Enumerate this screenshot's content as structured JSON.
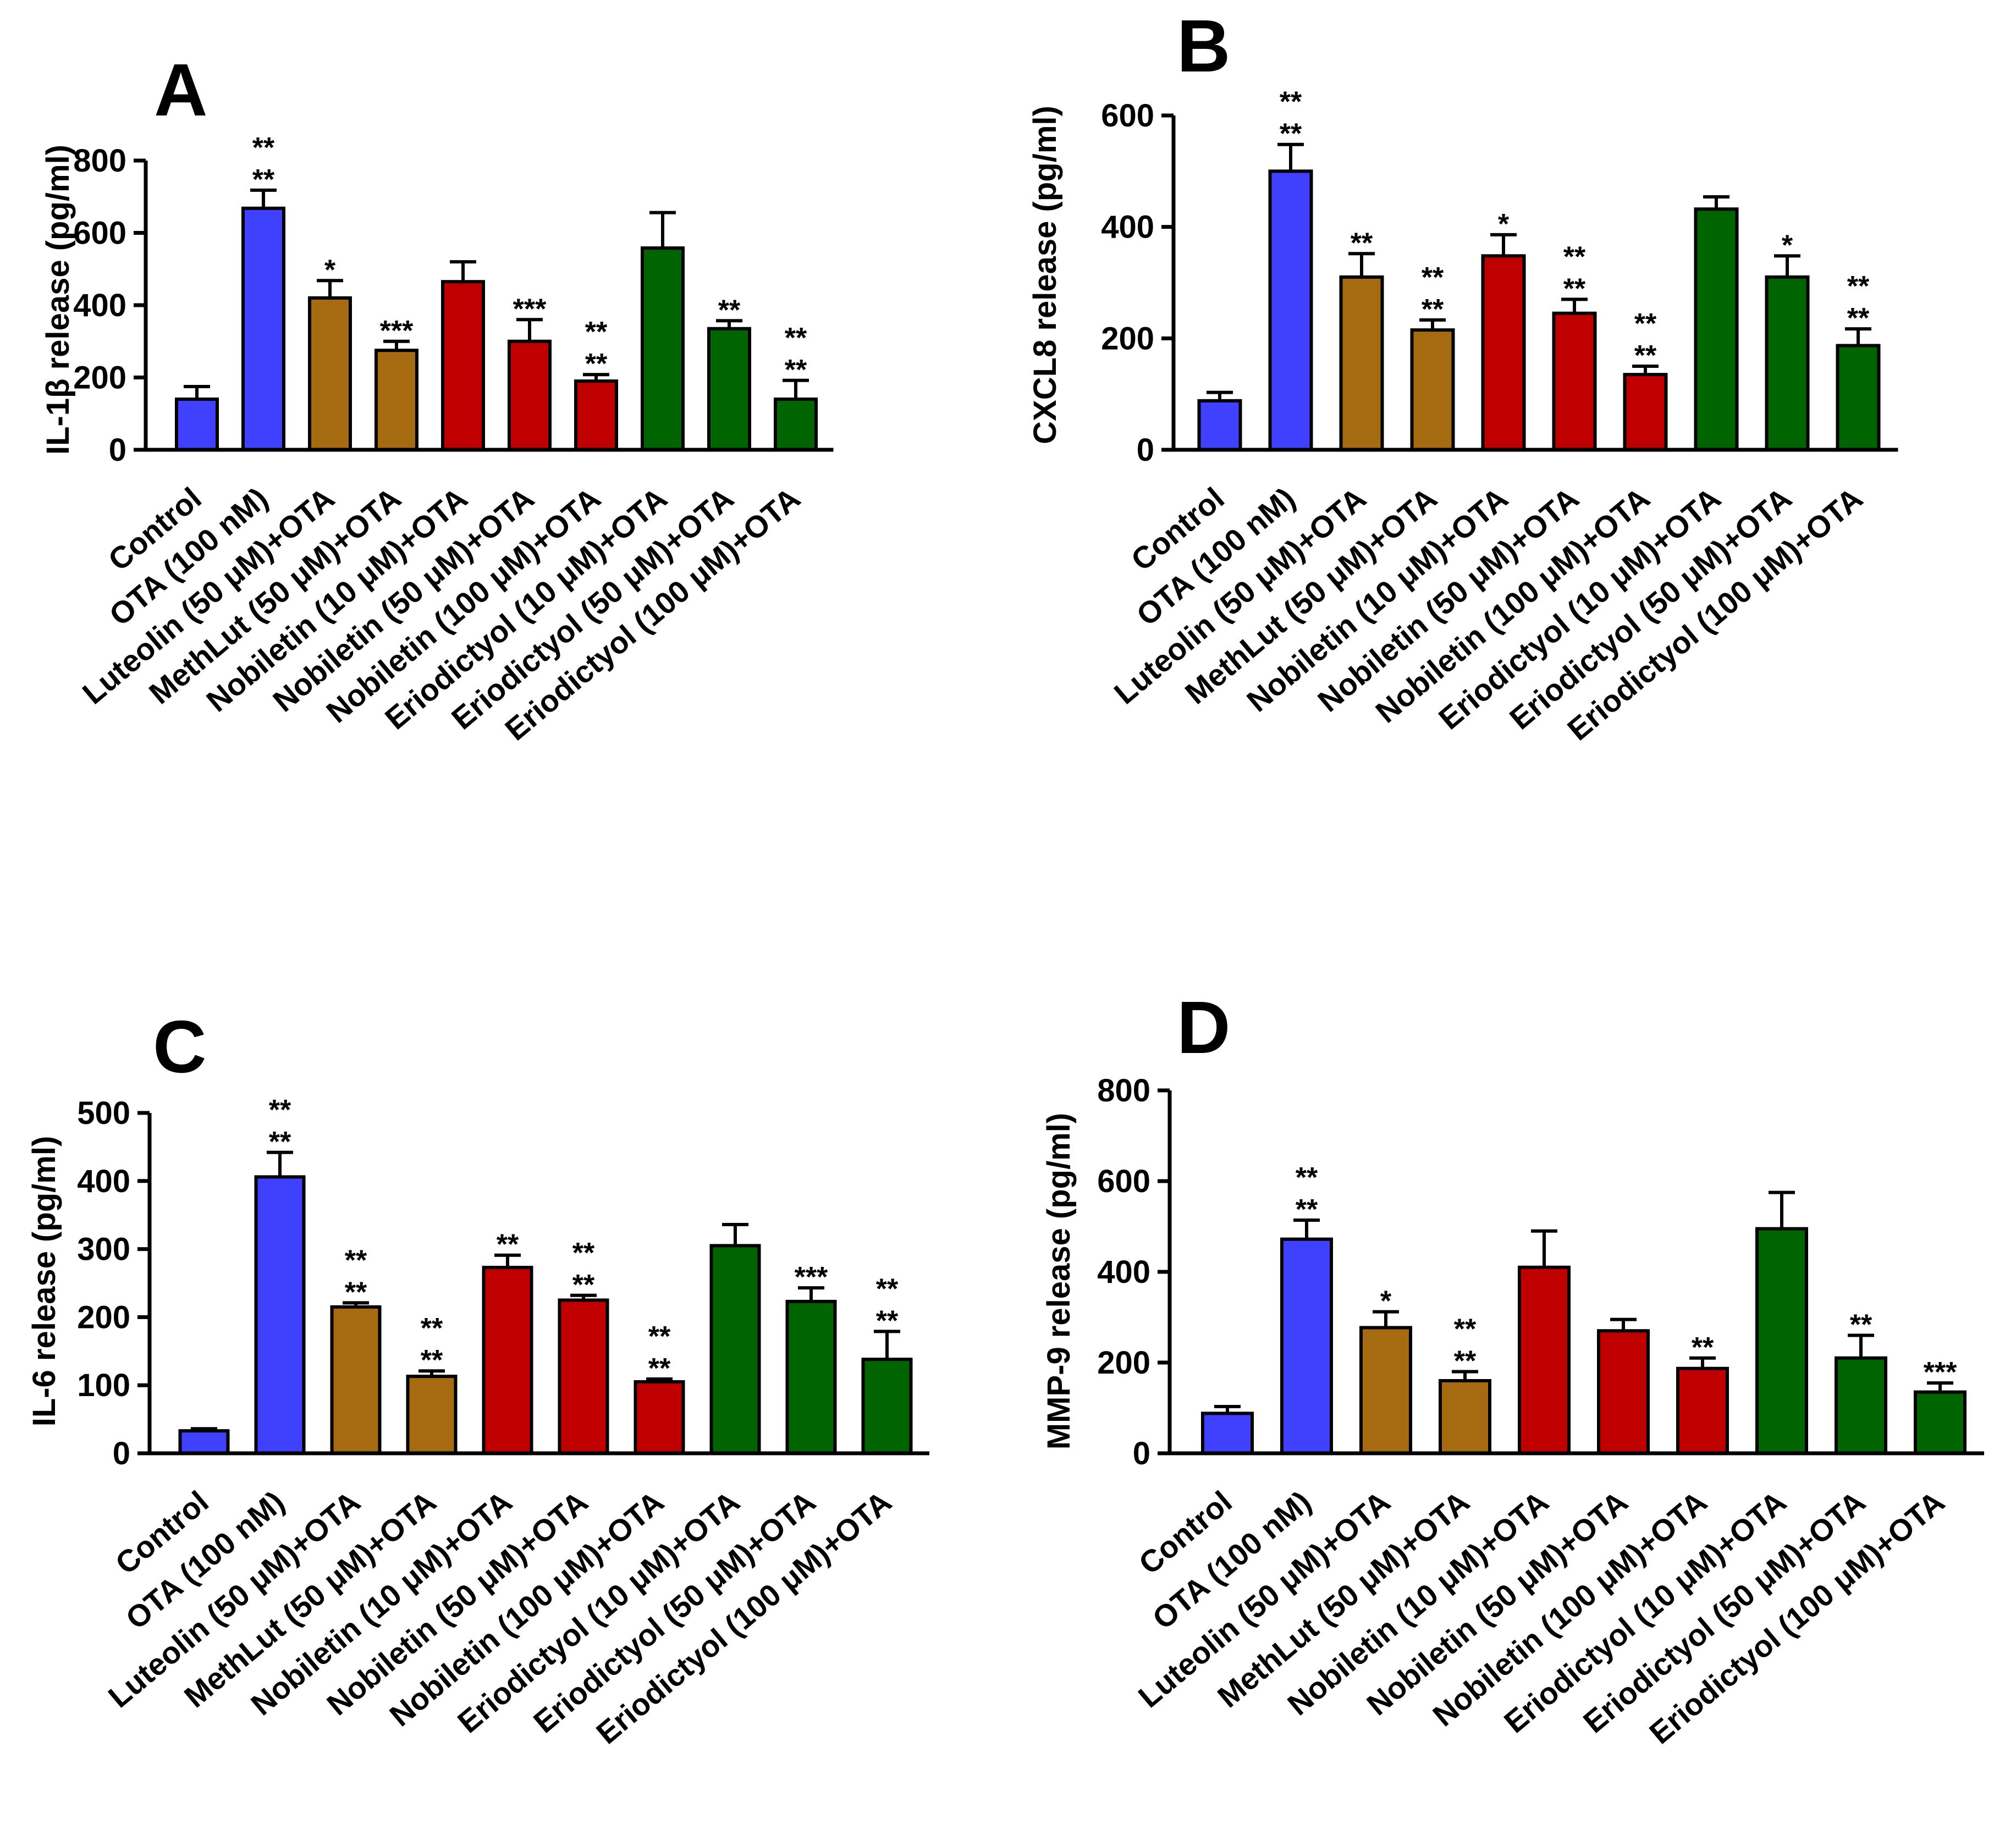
{
  "chart_data": [
    {
      "panel": "A",
      "type": "bar",
      "ylabel": "IL-1β release (pg/ml)",
      "ylim": [
        0,
        800
      ],
      "yticks": [
        0,
        200,
        400,
        600,
        800
      ],
      "categories": [
        "Control",
        "OTA (100 nM)",
        "Luteolin (50 μM)+OTA",
        "MethLut (50 μM)+OTA",
        "Nobiletin (10 μM)+OTA",
        "Nobiletin (50 μM)+OTA",
        "Nobiletin (100 μM)+OTA",
        "Eriodictyol (10 μM)+OTA",
        "Eriodictyol (50 μM)+OTA",
        "Eriodictyol (100 μM)+OTA"
      ],
      "values": [
        140,
        668,
        420,
        275,
        465,
        300,
        190,
        558,
        335,
        140
      ],
      "errors": [
        35,
        50,
        48,
        25,
        55,
        60,
        18,
        98,
        22,
        52
      ],
      "significance": [
        "",
        "**\n**",
        "*",
        "***",
        "",
        "***",
        "**\n**",
        "",
        "**",
        "**\n**"
      ],
      "colors": [
        "#4040ff",
        "#4040ff",
        "#a66a10",
        "#a66a10",
        "#c00000",
        "#c00000",
        "#c00000",
        "#006400",
        "#006400",
        "#006400"
      ]
    },
    {
      "panel": "B",
      "type": "bar",
      "ylabel": "CXCL8 release (pg/ml)",
      "ylim": [
        0,
        600
      ],
      "yticks": [
        0,
        200,
        400,
        600
      ],
      "categories": [
        "Control",
        "OTA (100 nM)",
        "Luteolin (50 μM)+OTA",
        "MethLut (50 μM)+OTA",
        "Nobiletin (10 μM)+OTA",
        "Nobiletin (50 μM)+OTA",
        "Nobiletin (100 μM)+OTA",
        "Eriodictyol (10 μM)+OTA",
        "Eriodictyol (50 μM)+OTA",
        "Eriodictyol (100 μM)+OTA"
      ],
      "values": [
        88,
        500,
        310,
        215,
        348,
        245,
        135,
        432,
        310,
        187
      ],
      "errors": [
        15,
        48,
        42,
        18,
        38,
        25,
        15,
        22,
        38,
        30
      ],
      "significance": [
        "",
        "**\n**",
        "**",
        "**\n**",
        "*",
        "**\n**",
        "**\n**",
        "",
        "*",
        "**\n**"
      ],
      "colors": [
        "#4040ff",
        "#4040ff",
        "#a66a10",
        "#a66a10",
        "#c00000",
        "#c00000",
        "#c00000",
        "#006400",
        "#006400",
        "#006400"
      ]
    },
    {
      "panel": "C",
      "type": "bar",
      "ylabel": "IL-6 release  (pg/ml)",
      "ylim": [
        0,
        500
      ],
      "yticks": [
        0,
        100,
        200,
        300,
        400,
        500
      ],
      "categories": [
        "Control",
        "OTA (100 nM)",
        "Luteolin (50 μM)+OTA",
        "MethLut (50 μM)+OTA",
        "Nobiletin (10 μM)+OTA",
        "Nobiletin (50 μM)+OTA",
        "Nobiletin (100 μM)+OTA",
        "Eriodictyol (10 μM)+OTA",
        "Eriodictyol (50 μM)+OTA",
        "Eriodictyol (100 μM)+OTA"
      ],
      "values": [
        33,
        406,
        215,
        113,
        273,
        225,
        105,
        305,
        223,
        138
      ],
      "errors": [
        3,
        36,
        6,
        8,
        18,
        7,
        4,
        31,
        20,
        41
      ],
      "significance": [
        "",
        "**\n**",
        "**\n**",
        "**\n**",
        "**",
        "**\n**",
        "**\n**",
        "",
        "***",
        "**\n**"
      ],
      "colors": [
        "#4040ff",
        "#4040ff",
        "#a66a10",
        "#a66a10",
        "#c00000",
        "#c00000",
        "#c00000",
        "#006400",
        "#006400",
        "#006400"
      ]
    },
    {
      "panel": "D",
      "type": "bar",
      "ylabel": "MMP-9 release (pg/ml)",
      "ylim": [
        0,
        800
      ],
      "yticks": [
        0,
        200,
        400,
        600,
        800
      ],
      "categories": [
        "Control",
        "OTA (100 nM)",
        "Luteolin (50 μM)+OTA",
        "MethLut (50 μM)+OTA",
        "Nobiletin (10 μM)+OTA",
        "Nobiletin (50 μM)+OTA",
        "Nobiletin (100 μM)+OTA",
        "Eriodictyol (10 μM)+OTA",
        "Eriodictyol (50 μM)+OTA",
        "Eriodictyol (100 μM)+OTA"
      ],
      "values": [
        88,
        472,
        277,
        160,
        410,
        270,
        187,
        495,
        210,
        135
      ],
      "errors": [
        15,
        42,
        35,
        20,
        80,
        25,
        23,
        80,
        50,
        20
      ],
      "significance": [
        "",
        "**\n**",
        "*",
        "**\n**",
        "",
        "",
        "**",
        "",
        "**",
        "***"
      ],
      "colors": [
        "#4040ff",
        "#4040ff",
        "#a66a10",
        "#a66a10",
        "#c00000",
        "#c00000",
        "#c00000",
        "#006400",
        "#006400",
        "#006400"
      ]
    }
  ]
}
